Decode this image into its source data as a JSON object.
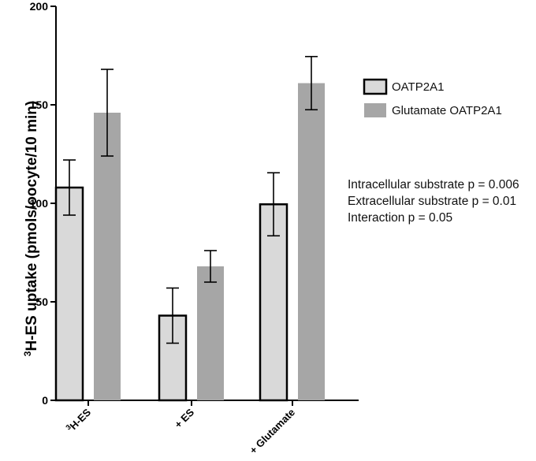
{
  "chart_data": {
    "type": "bar",
    "title": "",
    "xlabel": "",
    "ylabel": "H-ES uptake (pmols/oocyte/10 min)",
    "ylabel_superscript": "3",
    "ylim": [
      0,
      200
    ],
    "yticks": [
      0,
      50,
      100,
      150,
      200
    ],
    "categories": [
      {
        "superscript": "3",
        "text": "H-ES"
      },
      {
        "superscript": "",
        "text": "+ ES"
      },
      {
        "superscript": "",
        "text": "+ Glutamate"
      }
    ],
    "series": [
      {
        "name": "OATP2A1",
        "values": [
          108,
          43,
          99.5
        ],
        "errors": [
          14,
          14,
          16
        ],
        "fill": "#d9d9d9",
        "stroke": "#000000"
      },
      {
        "name": "Glutamate OATP2A1",
        "values": [
          146,
          68,
          161
        ],
        "errors": [
          22,
          8,
          13.5
        ],
        "fill": "#a6a6a6",
        "stroke": "none"
      }
    ],
    "legend_position": "right",
    "annotations": [
      "Intracellular substrate p = 0.006",
      "Extracellular substrate p = 0.01",
      "Interaction p = 0.05"
    ],
    "grid": false
  }
}
